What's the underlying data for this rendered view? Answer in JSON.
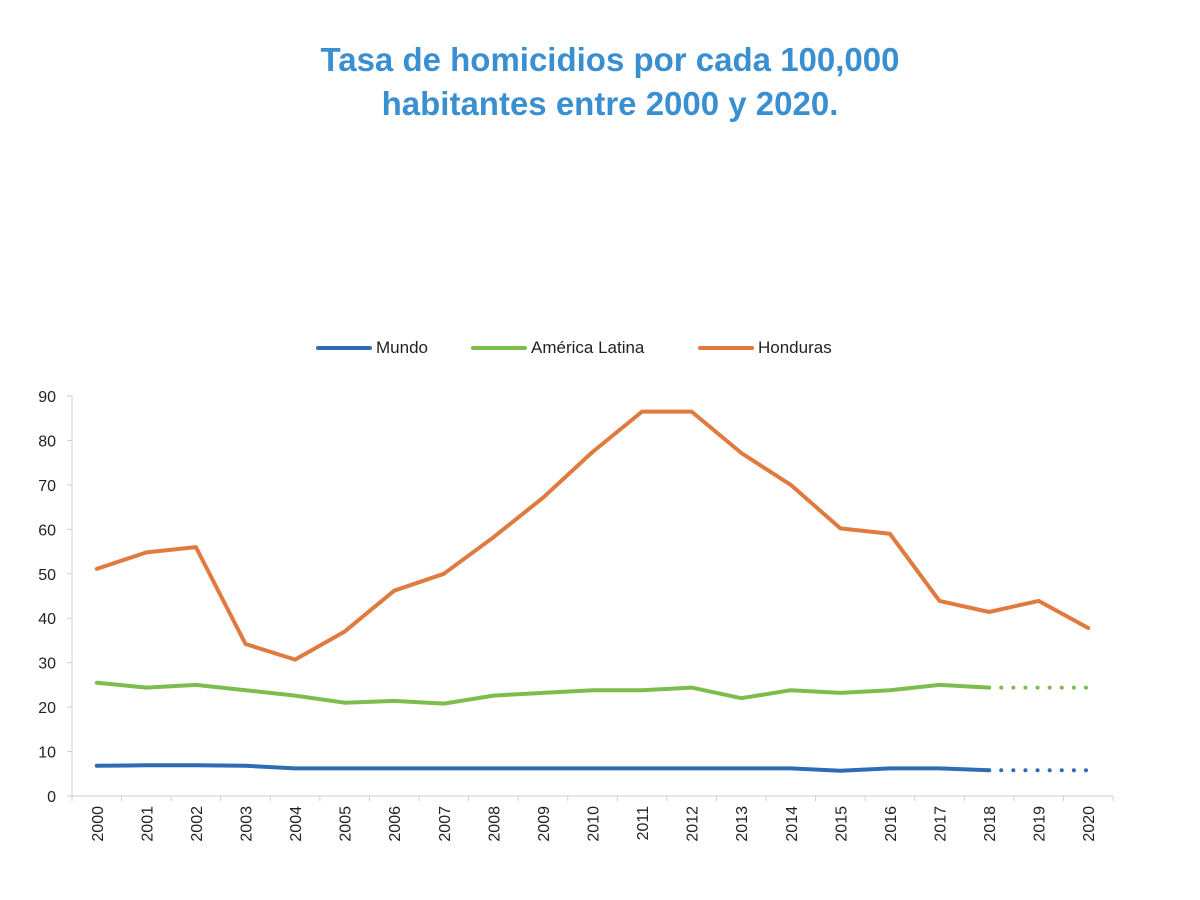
{
  "title_line1": "Tasa de homicidios por cada 100,000",
  "title_line2": "habitantes entre 2000 y 2020.",
  "chart_data": {
    "type": "line",
    "title": "Tasa de homicidios por cada 100,000 habitantes entre 2000 y 2020.",
    "xlabel": "",
    "ylabel": "",
    "categories": [
      "2000",
      "2001",
      "2002",
      "2003",
      "2004",
      "2005",
      "2006",
      "2007",
      "2008",
      "2009",
      "2010",
      "2011",
      "2012",
      "2013",
      "2014",
      "2015",
      "2016",
      "2017",
      "2018",
      "2019",
      "2020"
    ],
    "ylim": [
      0,
      90
    ],
    "yticks": [
      0,
      10,
      20,
      30,
      40,
      50,
      60,
      70,
      80,
      90
    ],
    "grid": false,
    "legend_position": "top-center",
    "series": [
      {
        "name": "Mundo",
        "color": "#2e6db5",
        "values": [
          6.8,
          6.9,
          6.9,
          6.8,
          6.2,
          6.2,
          6.2,
          6.2,
          6.2,
          6.2,
          6.2,
          6.2,
          6.2,
          6.2,
          6.2,
          5.7,
          6.2,
          6.2,
          5.8,
          null,
          null
        ],
        "projected": [
          null,
          null,
          null,
          null,
          null,
          null,
          null,
          null,
          null,
          null,
          null,
          null,
          null,
          null,
          null,
          null,
          null,
          null,
          5.8,
          5.8,
          5.8
        ]
      },
      {
        "name": "América Latina",
        "color": "#7cbd4e",
        "values": [
          25.5,
          24.4,
          25.0,
          23.8,
          22.6,
          21.0,
          21.4,
          20.8,
          22.6,
          23.2,
          23.8,
          23.8,
          24.4,
          22.0,
          23.8,
          23.2,
          23.8,
          25.0,
          24.4,
          null,
          null
        ],
        "projected": [
          null,
          null,
          null,
          null,
          null,
          null,
          null,
          null,
          null,
          null,
          null,
          null,
          null,
          null,
          null,
          null,
          null,
          null,
          24.4,
          24.4,
          24.4
        ]
      },
      {
        "name": "Honduras",
        "color": "#e07a3e",
        "values": [
          51.1,
          54.8,
          56.0,
          34.2,
          30.7,
          37.0,
          46.2,
          50.0,
          58.2,
          67.1,
          77.4,
          86.5,
          86.5,
          77.2,
          70.0,
          60.2,
          59.0,
          43.9,
          41.4,
          43.9,
          37.8
        ]
      }
    ]
  }
}
